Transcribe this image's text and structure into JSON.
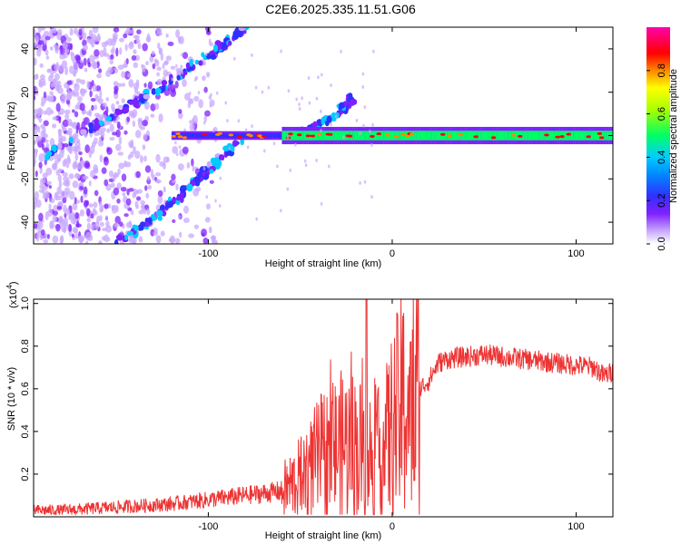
{
  "title": "C2E6.2025.335.11.51.G06",
  "colors": {
    "snr_line": "#ee3333",
    "spectrum_colormap": [
      "#ffffff",
      "#c8a8ff",
      "#8020ff",
      "#3030ff",
      "#00ccff",
      "#00ff66",
      "#ffff00",
      "#ff8800",
      "#ff0000",
      "#ff00aa"
    ]
  },
  "chart_data": [
    {
      "type": "heatmap",
      "xlabel": "Height of straight line (km)",
      "ylabel": "Frequency (Hz)",
      "xlim": [
        -195,
        120
      ],
      "ylim": [
        -50,
        50
      ],
      "xticks": [
        -100,
        0,
        100
      ],
      "yticks": [
        -40,
        -20,
        0,
        20,
        40
      ],
      "colorbar": {
        "label": "Normalized spectral amplitude",
        "range": [
          0,
          1
        ],
        "ticks": [
          "0.0",
          "0.2",
          "0.4",
          "0.6",
          "0.8"
        ]
      },
      "features": [
        {
          "name": "rising_streak",
          "x": [
            -190,
            -150,
            -120,
            -95,
            -80
          ],
          "y": [
            -10,
            10,
            25,
            40,
            50
          ]
        },
        {
          "name": "falling_streak",
          "x": [
            -150,
            -125,
            -105,
            -95,
            -82
          ],
          "y": [
            -50,
            -35,
            -20,
            -12,
            -2
          ]
        },
        {
          "name": "tail_streak",
          "x": [
            -50,
            -40,
            -30,
            -20
          ],
          "y": [
            0,
            5,
            10,
            18
          ]
        },
        {
          "name": "carrier_band",
          "x": [
            -120,
            120
          ],
          "y": [
            0,
            0
          ]
        }
      ]
    },
    {
      "type": "line",
      "xlabel": "Height of straight line (km)",
      "ylabel": "SNR (10 * v/v)",
      "scale_label": "(x10",
      "scale_exp": "4",
      "ylabel_suffix": ")",
      "xlim": [
        -195,
        120
      ],
      "ylim": [
        0,
        1.02
      ],
      "xticks": [
        -100,
        0,
        100
      ],
      "yticks": [
        0.2,
        0.4,
        0.6,
        0.8,
        1.0
      ],
      "series": [
        {
          "x": [
            -195,
            -180,
            -160,
            -140,
            -120,
            -110,
            -100,
            -90,
            -80,
            -70,
            -60,
            -50,
            -45,
            -40,
            -35,
            -30,
            -25,
            -20,
            -15,
            -10,
            -5,
            0,
            5,
            10,
            15,
            20,
            25,
            30,
            40,
            50,
            60,
            70,
            80,
            90,
            100,
            110,
            115,
            120
          ],
          "y": [
            0.03,
            0.03,
            0.04,
            0.05,
            0.06,
            0.07,
            0.08,
            0.09,
            0.1,
            0.11,
            0.12,
            0.18,
            0.22,
            0.27,
            0.3,
            0.32,
            0.34,
            0.33,
            0.3,
            0.28,
            0.3,
            0.42,
            0.5,
            0.55,
            0.6,
            0.64,
            0.72,
            0.74,
            0.75,
            0.76,
            0.75,
            0.74,
            0.73,
            0.72,
            0.71,
            0.7,
            0.66,
            0.68
          ]
        }
      ]
    }
  ]
}
